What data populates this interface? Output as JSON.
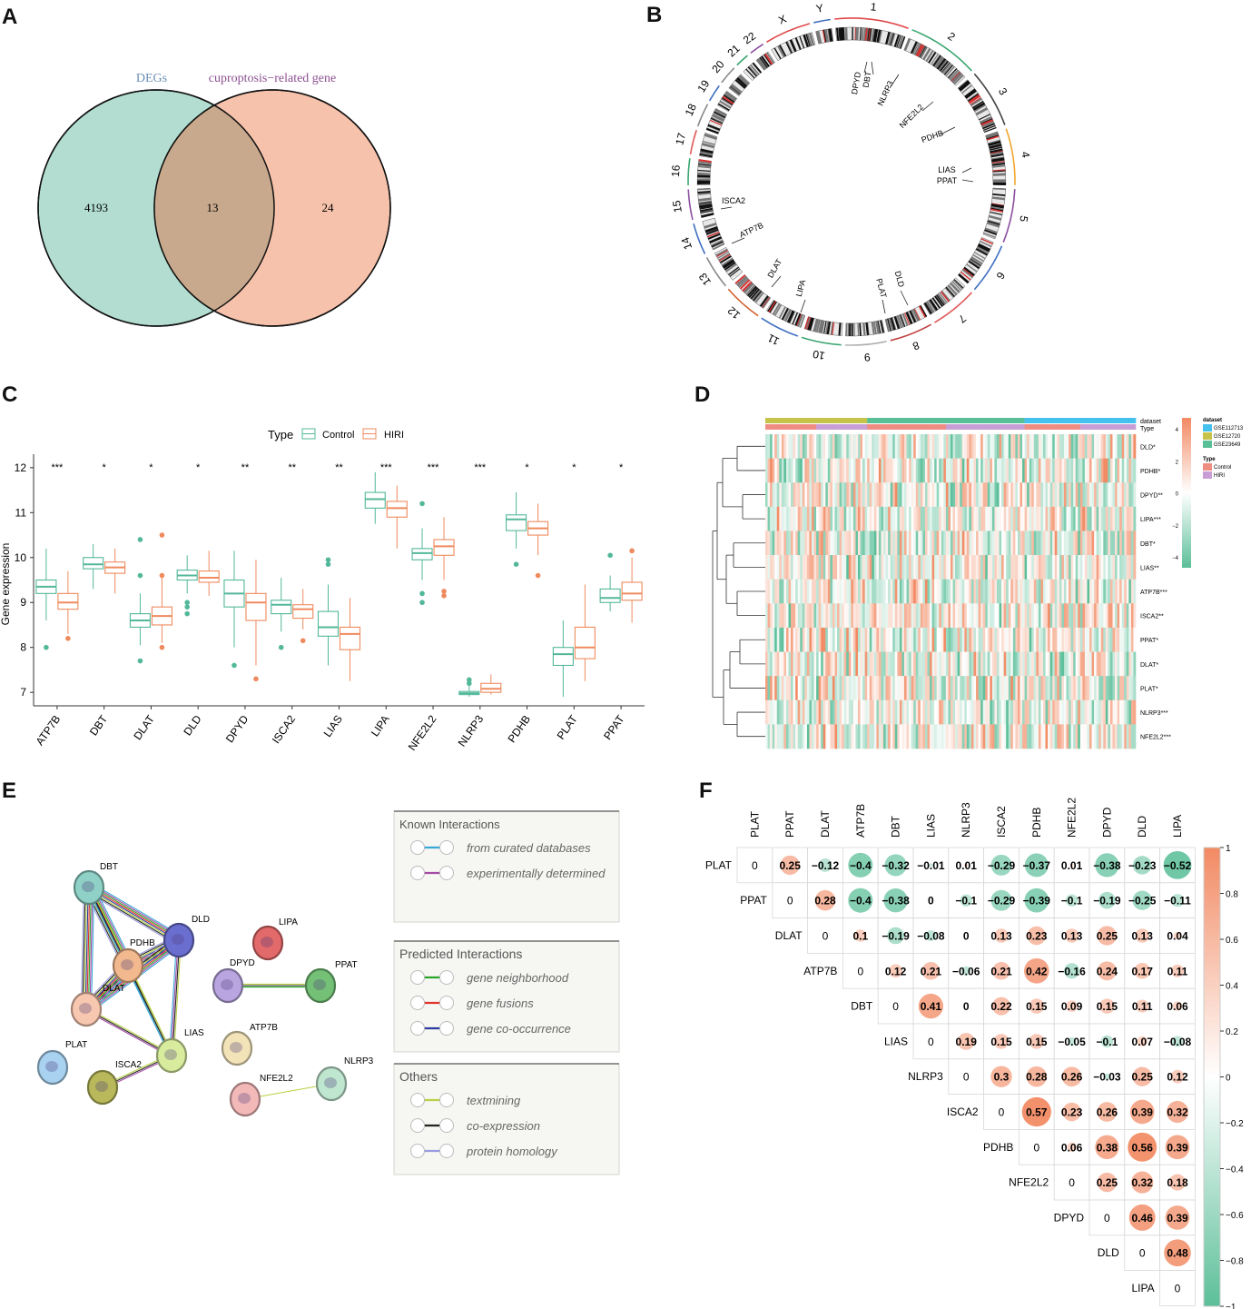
{
  "panel_letters": {
    "a": "A",
    "b": "B",
    "c": "C",
    "d": "D",
    "e": "E",
    "f": "F"
  },
  "chart_data": [
    {
      "panel": "A",
      "type": "venn",
      "sets": [
        {
          "name": "DEGs",
          "only": 4193,
          "color": "#b2ddd0"
        },
        {
          "name": "cuproptosis−related gene",
          "only": 24,
          "color": "#f7c2ab"
        }
      ],
      "overlap": 13,
      "overlap_color": "#c9a98d",
      "label_colors": [
        "#6b8fb5",
        "#8c4f91"
      ]
    },
    {
      "panel": "B",
      "type": "circos",
      "chromosomes": [
        "1",
        "2",
        "3",
        "4",
        "5",
        "6",
        "7",
        "8",
        "9",
        "10",
        "11",
        "12",
        "13",
        "14",
        "15",
        "16",
        "17",
        "18",
        "19",
        "20",
        "21",
        "22",
        "X",
        "Y"
      ],
      "genes": [
        "DPYD",
        "DBT",
        "NLRP3",
        "NFE2L2",
        "PDHB",
        "LIAS",
        "PPAT",
        "DLD",
        "PLAT",
        "LIPA",
        "DLAT",
        "ATP7B",
        "ISCA2"
      ]
    },
    {
      "panel": "C",
      "type": "boxplot",
      "legend_title": "Type",
      "groups": [
        {
          "name": "Control",
          "color": "#53b89a"
        },
        {
          "name": "HIRI",
          "color": "#ef8a5e"
        }
      ],
      "ylabel": "Gene expression",
      "ylim": [
        6.7,
        12.3
      ],
      "yticks": [
        7,
        8,
        9,
        10,
        11,
        12
      ],
      "categories": [
        "ATP7B",
        "DBT",
        "DLAT",
        "DLD",
        "DPYD",
        "ISCA2",
        "LIAS",
        "LIPA",
        "NFE2L2",
        "NLRP3",
        "PDHB",
        "PLAT",
        "PPAT"
      ],
      "significance": [
        "***",
        "*",
        "*",
        "*",
        "**",
        "**",
        "**",
        "***",
        "***",
        "***",
        "*",
        "*",
        "*"
      ],
      "series": [
        {
          "name": "Control",
          "boxes": [
            [
              8.6,
              9.2,
              9.35,
              9.5,
              10.2
            ],
            [
              9.3,
              9.75,
              9.85,
              10.0,
              10.3
            ],
            [
              8.05,
              8.45,
              8.6,
              8.75,
              9.2
            ],
            [
              9.2,
              9.5,
              9.6,
              9.72,
              10.05
            ],
            [
              8.0,
              8.9,
              9.2,
              9.5,
              10.15
            ],
            [
              8.35,
              8.75,
              8.95,
              9.05,
              9.55
            ],
            [
              7.6,
              8.25,
              8.45,
              8.8,
              9.4
            ],
            [
              10.75,
              11.1,
              11.3,
              11.45,
              11.9
            ],
            [
              9.5,
              9.95,
              10.1,
              10.2,
              10.65
            ],
            [
              6.9,
              6.95,
              6.98,
              7.02,
              7.15
            ],
            [
              10.2,
              10.6,
              10.85,
              10.95,
              11.45
            ],
            [
              6.9,
              7.6,
              7.85,
              8.0,
              8.6
            ],
            [
              8.8,
              9.0,
              9.1,
              9.3,
              9.6
            ]
          ],
          "outliers": [
            [
              8.0
            ],
            [],
            [
              7.7,
              9.6,
              10.4
            ],
            [
              8.75,
              8.9,
              9.0
            ],
            [
              7.6
            ],
            [
              8.0
            ],
            [
              9.85,
              9.95
            ],
            [],
            [
              9.0,
              9.2,
              11.2
            ],
            [
              7.2,
              7.28
            ],
            [
              9.85
            ],
            [],
            [
              10.05
            ]
          ]
        },
        {
          "name": "HIRI",
          "boxes": [
            [
              8.3,
              8.85,
              9.0,
              9.2,
              9.7
            ],
            [
              9.2,
              9.65,
              9.78,
              9.9,
              10.2
            ],
            [
              8.1,
              8.5,
              8.7,
              8.9,
              9.65
            ],
            [
              9.15,
              9.45,
              9.55,
              9.7,
              10.15
            ],
            [
              7.6,
              8.6,
              9.0,
              9.2,
              9.95
            ],
            [
              8.4,
              8.65,
              8.85,
              8.95,
              9.3
            ],
            [
              7.25,
              7.95,
              8.3,
              8.45,
              9.1
            ],
            [
              10.2,
              10.9,
              11.1,
              11.25,
              11.6
            ],
            [
              9.5,
              10.05,
              10.25,
              10.4,
              10.9
            ],
            [
              6.95,
              7.0,
              7.08,
              7.2,
              7.4
            ],
            [
              10.05,
              10.5,
              10.65,
              10.8,
              11.2
            ],
            [
              7.25,
              7.75,
              8.0,
              8.45,
              9.4
            ],
            [
              8.55,
              9.05,
              9.2,
              9.45,
              10.0
            ]
          ],
          "outliers": [
            [
              8.2
            ],
            [],
            [
              8.0,
              9.6,
              10.5
            ],
            [],
            [
              7.3
            ],
            [
              8.15
            ],
            [],
            [],
            [
              9.15,
              9.25
            ],
            [],
            [
              9.6
            ],
            [],
            [
              10.15
            ]
          ]
        }
      ]
    },
    {
      "panel": "D",
      "type": "heatmap",
      "rows": [
        "DLD*",
        "PDHB*",
        "DPYD**",
        "LIPA***",
        "DBT*",
        "LIAS**",
        "ATP7B***",
        "ISCA2**",
        "PPAT*",
        "DLAT*",
        "PLAT*",
        "NLRP3***",
        "NFE2L2***"
      ],
      "annotation_rows": [
        "dataset",
        "Type"
      ],
      "legend_dataset_title": "dataset",
      "legend_dataset": [
        {
          "name": "GSE112713",
          "color": "#45c1ee"
        },
        {
          "name": "GSE12720",
          "color": "#c7c24a"
        },
        {
          "name": "GSE23649",
          "color": "#59bf97"
        }
      ],
      "legend_type_title": "Type",
      "legend_type": [
        {
          "name": "Control",
          "color": "#ef8d82"
        },
        {
          "name": "HIRI",
          "color": "#c99ed6"
        }
      ],
      "scale_ticks": [
        "4",
        "2",
        "0",
        "−2",
        "−4"
      ],
      "low_color": "#5cbf9a",
      "high_color": "#f28a63"
    },
    {
      "panel": "E",
      "type": "network",
      "nodes": [
        {
          "name": "DBT",
          "color": "#8fd1c6"
        },
        {
          "name": "DLD",
          "color": "#6a6fcf"
        },
        {
          "name": "PDHB",
          "color": "#f2b98e"
        },
        {
          "name": "DLAT",
          "color": "#f7c7b0"
        },
        {
          "name": "LIAS",
          "color": "#d8ec9e"
        },
        {
          "name": "ISCA2",
          "color": "#b9b85a"
        },
        {
          "name": "PLAT",
          "color": "#a9d2f0"
        },
        {
          "name": "LIPA",
          "color": "#e36a6a"
        },
        {
          "name": "DPYD",
          "color": "#b9a5e0"
        },
        {
          "name": "PPAT",
          "color": "#74c076"
        },
        {
          "name": "ATP7B",
          "color": "#f2e3b8"
        },
        {
          "name": "NFE2L2",
          "color": "#f3b9b9"
        },
        {
          "name": "NLRP3",
          "color": "#bfe6cf"
        }
      ],
      "legend_known_title": "Known Interactions",
      "legend_known": [
        {
          "label": "from curated databases",
          "color": "#39a8d8"
        },
        {
          "label": "experimentally determined",
          "color": "#a548a5"
        }
      ],
      "legend_predicted_title": "Predicted Interactions",
      "legend_predicted": [
        {
          "label": "gene neighborhood",
          "color": "#2aa52a"
        },
        {
          "label": "gene fusions",
          "color": "#e0312a"
        },
        {
          "label": "gene co-occurrence",
          "color": "#2b3a9e"
        }
      ],
      "legend_others_title": "Others",
      "legend_others": [
        {
          "label": "textmining",
          "color": "#b8d144"
        },
        {
          "label": "co-expression",
          "color": "#222222"
        },
        {
          "label": "protein homology",
          "color": "#9a9ae0"
        }
      ]
    },
    {
      "panel": "F",
      "type": "correlation",
      "genes": [
        "PLAT",
        "PPAT",
        "DLAT",
        "ATP7B",
        "DBT",
        "LIAS",
        "NLRP3",
        "ISCA2",
        "PDHB",
        "NFE2L2",
        "DPYD",
        "DLD",
        "LIPA"
      ],
      "matrix": [
        [
          0,
          0.25,
          -0.12,
          -0.4,
          -0.32,
          -0.01,
          0.01,
          -0.29,
          -0.37,
          0.01,
          -0.38,
          -0.23,
          -0.52
        ],
        [
          0,
          0.28,
          -0.4,
          -0.38,
          0,
          -0.1,
          -0.29,
          -0.39,
          -0.1,
          -0.19,
          -0.25,
          -0.11
        ],
        [
          0,
          0.1,
          -0.19,
          -0.08,
          0,
          0.13,
          0.23,
          0.13,
          0.25,
          0.13,
          0.04
        ],
        [
          0,
          0.12,
          0.21,
          -0.06,
          0.21,
          0.42,
          -0.16,
          0.24,
          0.17,
          0.11
        ],
        [
          0,
          0.41,
          0,
          0.22,
          0.15,
          0.09,
          0.15,
          0.11,
          0.06
        ],
        [
          0,
          0.19,
          0.15,
          0.15,
          -0.05,
          -0.1,
          0.07,
          -0.08
        ],
        [
          0,
          0.3,
          0.28,
          0.26,
          -0.03,
          0.25,
          0.12
        ],
        [
          0,
          0.57,
          0.23,
          0.26,
          0.39,
          0.32
        ],
        [
          0,
          0.06,
          0.38,
          0.56,
          0.39
        ],
        [
          0,
          0.25,
          0.32,
          0.18
        ],
        [
          0,
          0.46,
          0.39
        ],
        [
          0,
          0.48
        ],
        [
          0
        ]
      ],
      "scale_ticks": [
        "1",
        "0.8",
        "0.6",
        "0.4",
        "0.2",
        "0",
        "−0.2",
        "−0.4",
        "−0.6",
        "−0.8",
        "−1"
      ]
    }
  ]
}
